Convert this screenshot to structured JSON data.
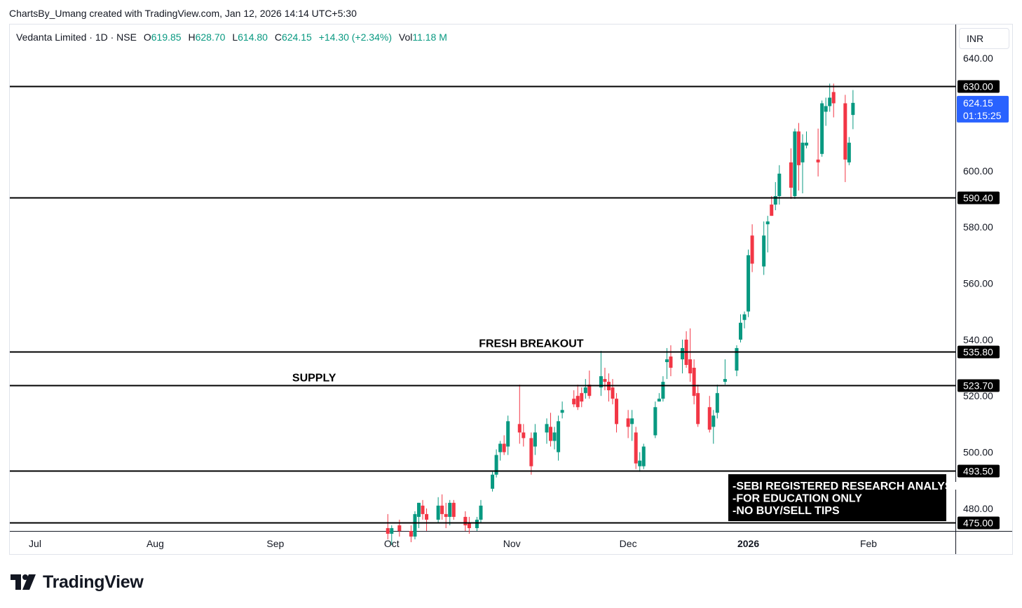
{
  "credit": "ChartsBy_Umang created with TradingView.com, Jan 12, 2026 14:14 UTC+5:30",
  "legend": {
    "symbol": "Vedanta Limited · 1D · NSE",
    "open_label": "O",
    "open": "619.85",
    "high_label": "H",
    "high": "628.70",
    "low_label": "L",
    "low": "614.80",
    "close_label": "C",
    "close": "624.15",
    "change": "+14.30 (+2.34%)",
    "vol_label": "Vol",
    "vol": "11.18 M"
  },
  "currency": "INR",
  "logo_text": "TradingView",
  "colors": {
    "up": "#089981",
    "down": "#f23645",
    "last_price": "#2962ff",
    "line": "#000000"
  },
  "chart_data": {
    "type": "candlestick",
    "y_range": [
      472,
      652
    ],
    "y_ticks": [
      "640.00",
      "600.00",
      "580.00",
      "560.00",
      "540.00",
      "520.00",
      "500.00",
      "480.00"
    ],
    "x_ticks": [
      {
        "label": "Jul",
        "date": "2025-07-01",
        "bold": false
      },
      {
        "label": "Aug",
        "date": "2025-08-01",
        "bold": false
      },
      {
        "label": "Sep",
        "date": "2025-09-01",
        "bold": false
      },
      {
        "label": "Oct",
        "date": "2025-10-01",
        "bold": false
      },
      {
        "label": "Nov",
        "date": "2025-11-01",
        "bold": false
      },
      {
        "label": "Dec",
        "date": "2025-12-01",
        "bold": false
      },
      {
        "label": "2026",
        "date": "2026-01-01",
        "bold": true
      },
      {
        "label": "Feb",
        "date": "2026-02-01",
        "bold": false
      }
    ],
    "levels": [
      {
        "value": 630.0,
        "label": "630.00"
      },
      {
        "value": 590.4,
        "label": "590.40"
      },
      {
        "value": 535.8,
        "label": "535.80"
      },
      {
        "value": 523.7,
        "label": "523.70"
      },
      {
        "value": 493.5,
        "label": "493.50"
      },
      {
        "value": 475.0,
        "label": "475.00"
      }
    ],
    "last_price": {
      "value": 624.15,
      "label": "624.15",
      "countdown": "01:15:25"
    },
    "annotations": [
      {
        "text": "FRESH BREAKOUT",
        "price": 535.8,
        "date": "2025-11-06"
      },
      {
        "text": "SUPPLY",
        "price": 523.7,
        "date": "2025-09-11"
      }
    ],
    "disclaimer": [
      "-SEBI REGISTERED RESEARCH ANALYST",
      "-FOR EDUCATION ONLY",
      "-NO BUY/SELL TIPS"
    ],
    "candles": [
      {
        "d": "2025-09-30",
        "o": 473,
        "h": 478,
        "l": 469,
        "c": 471
      },
      {
        "d": "2025-10-01",
        "o": 471,
        "h": 474,
        "l": 467,
        "c": 473
      },
      {
        "d": "2025-10-03",
        "o": 474,
        "h": 476,
        "l": 470,
        "c": 472
      },
      {
        "d": "2025-10-06",
        "o": 472,
        "h": 474,
        "l": 468,
        "c": 470
      },
      {
        "d": "2025-10-07",
        "o": 470,
        "h": 479,
        "l": 469,
        "c": 478
      },
      {
        "d": "2025-10-08",
        "o": 477,
        "h": 482,
        "l": 473,
        "c": 482
      },
      {
        "d": "2025-10-09",
        "o": 481,
        "h": 483,
        "l": 476,
        "c": 478
      },
      {
        "d": "2025-10-10",
        "o": 478,
        "h": 480,
        "l": 472,
        "c": 476
      },
      {
        "d": "2025-10-13",
        "o": 476,
        "h": 484,
        "l": 475,
        "c": 481
      },
      {
        "d": "2025-10-14",
        "o": 481,
        "h": 485,
        "l": 476,
        "c": 478
      },
      {
        "d": "2025-10-15",
        "o": 478,
        "h": 482,
        "l": 473,
        "c": 477
      },
      {
        "d": "2025-10-16",
        "o": 477,
        "h": 483,
        "l": 474,
        "c": 482
      },
      {
        "d": "2025-10-17",
        "o": 482,
        "h": 483,
        "l": 476,
        "c": 477
      },
      {
        "d": "2025-10-20",
        "o": 477,
        "h": 479,
        "l": 472,
        "c": 474
      },
      {
        "d": "2025-10-21",
        "o": 475,
        "h": 477,
        "l": 471,
        "c": 473
      },
      {
        "d": "2025-10-23",
        "o": 473,
        "h": 477,
        "l": 472,
        "c": 476
      },
      {
        "d": "2025-10-24",
        "o": 476,
        "h": 483,
        "l": 475,
        "c": 481
      },
      {
        "d": "2025-10-27",
        "o": 487,
        "h": 493,
        "l": 486,
        "c": 492
      },
      {
        "d": "2025-10-28",
        "o": 492,
        "h": 501,
        "l": 491,
        "c": 499
      },
      {
        "d": "2025-10-29",
        "o": 500,
        "h": 504,
        "l": 497,
        "c": 503
      },
      {
        "d": "2025-10-30",
        "o": 503,
        "h": 506,
        "l": 499,
        "c": 500
      },
      {
        "d": "2025-10-31",
        "o": 502,
        "h": 513,
        "l": 499,
        "c": 511
      },
      {
        "d": "2025-11-03",
        "o": 510,
        "h": 524,
        "l": 503,
        "c": 507
      },
      {
        "d": "2025-11-04",
        "o": 507,
        "h": 510,
        "l": 502,
        "c": 505
      },
      {
        "d": "2025-11-06",
        "o": 505,
        "h": 507,
        "l": 492,
        "c": 495
      },
      {
        "d": "2025-11-07",
        "o": 502,
        "h": 510,
        "l": 499,
        "c": 507
      },
      {
        "d": "2025-11-10",
        "o": 507,
        "h": 512,
        "l": 503,
        "c": 510
      },
      {
        "d": "2025-11-11",
        "o": 509,
        "h": 514,
        "l": 502,
        "c": 504
      },
      {
        "d": "2025-11-12",
        "o": 504,
        "h": 509,
        "l": 501,
        "c": 507
      },
      {
        "d": "2025-11-13",
        "o": 500,
        "h": 513,
        "l": 497,
        "c": 511
      },
      {
        "d": "2025-11-14",
        "o": 514,
        "h": 518,
        "l": 512,
        "c": 515
      },
      {
        "d": "2025-11-17",
        "o": 519,
        "h": 522,
        "l": 516,
        "c": 517
      },
      {
        "d": "2025-11-18",
        "o": 520,
        "h": 524,
        "l": 515,
        "c": 516
      },
      {
        "d": "2025-11-19",
        "o": 521,
        "h": 523,
        "l": 516,
        "c": 518
      },
      {
        "d": "2025-11-20",
        "o": 521,
        "h": 526,
        "l": 519,
        "c": 523
      },
      {
        "d": "2025-11-21",
        "o": 524,
        "h": 529,
        "l": 519,
        "c": 520
      },
      {
        "d": "2025-11-24",
        "o": 523,
        "h": 536,
        "l": 520,
        "c": 527
      },
      {
        "d": "2025-11-25",
        "o": 526,
        "h": 530,
        "l": 522,
        "c": 525
      },
      {
        "d": "2025-11-26",
        "o": 525,
        "h": 528,
        "l": 518,
        "c": 522
      },
      {
        "d": "2025-11-27",
        "o": 523,
        "h": 526,
        "l": 517,
        "c": 519
      },
      {
        "d": "2025-11-28",
        "o": 519,
        "h": 521,
        "l": 507,
        "c": 510
      },
      {
        "d": "2025-12-01",
        "o": 512,
        "h": 515,
        "l": 505,
        "c": 509
      },
      {
        "d": "2025-12-02",
        "o": 510,
        "h": 515,
        "l": 504,
        "c": 512
      },
      {
        "d": "2025-12-03",
        "o": 507,
        "h": 509,
        "l": 494,
        "c": 496
      },
      {
        "d": "2025-12-04",
        "o": 495,
        "h": 500,
        "l": 493,
        "c": 497
      },
      {
        "d": "2025-12-05",
        "o": 495,
        "h": 503,
        "l": 494,
        "c": 502
      },
      {
        "d": "2025-12-08",
        "o": 506,
        "h": 518,
        "l": 505,
        "c": 516
      },
      {
        "d": "2025-12-09",
        "o": 518,
        "h": 521,
        "l": 518,
        "c": 519
      },
      {
        "d": "2025-12-10",
        "o": 519,
        "h": 527,
        "l": 518,
        "c": 525
      },
      {
        "d": "2025-12-11",
        "o": 532,
        "h": 537,
        "l": 526,
        "c": 533
      },
      {
        "d": "2025-12-12",
        "o": 534,
        "h": 538,
        "l": 527,
        "c": 530
      },
      {
        "d": "2025-12-15",
        "o": 533,
        "h": 540,
        "l": 528,
        "c": 537
      },
      {
        "d": "2025-12-16",
        "o": 540,
        "h": 543,
        "l": 530,
        "c": 531
      },
      {
        "d": "2025-12-17",
        "o": 533,
        "h": 544,
        "l": 525,
        "c": 528
      },
      {
        "d": "2025-12-18",
        "o": 530,
        "h": 533,
        "l": 517,
        "c": 520
      },
      {
        "d": "2025-12-19",
        "o": 521,
        "h": 524,
        "l": 509,
        "c": 510
      },
      {
        "d": "2025-12-22",
        "o": 516,
        "h": 520,
        "l": 507,
        "c": 508
      },
      {
        "d": "2025-12-23",
        "o": 509,
        "h": 515,
        "l": 503,
        "c": 513
      },
      {
        "d": "2025-12-24",
        "o": 514,
        "h": 524,
        "l": 512,
        "c": 521
      },
      {
        "d": "2025-12-26",
        "o": 525,
        "h": 533,
        "l": 524,
        "c": 526
      },
      {
        "d": "2025-12-29",
        "o": 529,
        "h": 538,
        "l": 527,
        "c": 537
      },
      {
        "d": "2025-12-30",
        "o": 540,
        "h": 549,
        "l": 539,
        "c": 546
      },
      {
        "d": "2025-12-31",
        "o": 547,
        "h": 550,
        "l": 544,
        "c": 549
      },
      {
        "d": "2026-01-01",
        "o": 550,
        "h": 572,
        "l": 548,
        "c": 570
      },
      {
        "d": "2026-01-02",
        "o": 577,
        "h": 581,
        "l": 564,
        "c": 567
      },
      {
        "d": "2026-01-05",
        "o": 566,
        "h": 582,
        "l": 563,
        "c": 577
      },
      {
        "d": "2026-01-06",
        "o": 581,
        "h": 584,
        "l": 571,
        "c": 582
      },
      {
        "d": "2026-01-07",
        "o": 588,
        "h": 591,
        "l": 584,
        "c": 584
      },
      {
        "d": "2026-01-08",
        "o": 588,
        "h": 596,
        "l": 586,
        "c": 591
      },
      {
        "d": "2026-01-09",
        "o": 591,
        "h": 602,
        "l": 588,
        "c": 599
      },
      {
        "d": "2026-01-12",
        "o": 603,
        "h": 608,
        "l": 590,
        "c": 594
      },
      {
        "d": "2026-01-13",
        "o": 591,
        "h": 615,
        "l": 590,
        "c": 614
      },
      {
        "d": "2026-01-14",
        "o": 614,
        "h": 617,
        "l": 593,
        "c": 602
      },
      {
        "d": "2026-01-15",
        "o": 603,
        "h": 613,
        "l": 592,
        "c": 610
      },
      {
        "d": "2026-01-16",
        "o": 609,
        "h": 614,
        "l": 608,
        "c": 610
      },
      {
        "d": "2026-01-19",
        "o": 604,
        "h": 615,
        "l": 598,
        "c": 603
      },
      {
        "d": "2026-01-20",
        "o": 606,
        "h": 625,
        "l": 605,
        "c": 624
      },
      {
        "d": "2026-01-21",
        "o": 621,
        "h": 626,
        "l": 616,
        "c": 623
      },
      {
        "d": "2026-01-22",
        "o": 623,
        "h": 631,
        "l": 621,
        "c": 626
      },
      {
        "d": "2026-01-23",
        "o": 628,
        "h": 631,
        "l": 619,
        "c": 624
      },
      {
        "d": "2026-01-26",
        "o": 624,
        "h": 627,
        "l": 596,
        "c": 604
      },
      {
        "d": "2026-01-27",
        "o": 603,
        "h": 612,
        "l": 602,
        "c": 610
      },
      {
        "d": "2026-01-28",
        "o": 619.85,
        "h": 628.7,
        "l": 614.8,
        "c": 624.15
      }
    ]
  }
}
